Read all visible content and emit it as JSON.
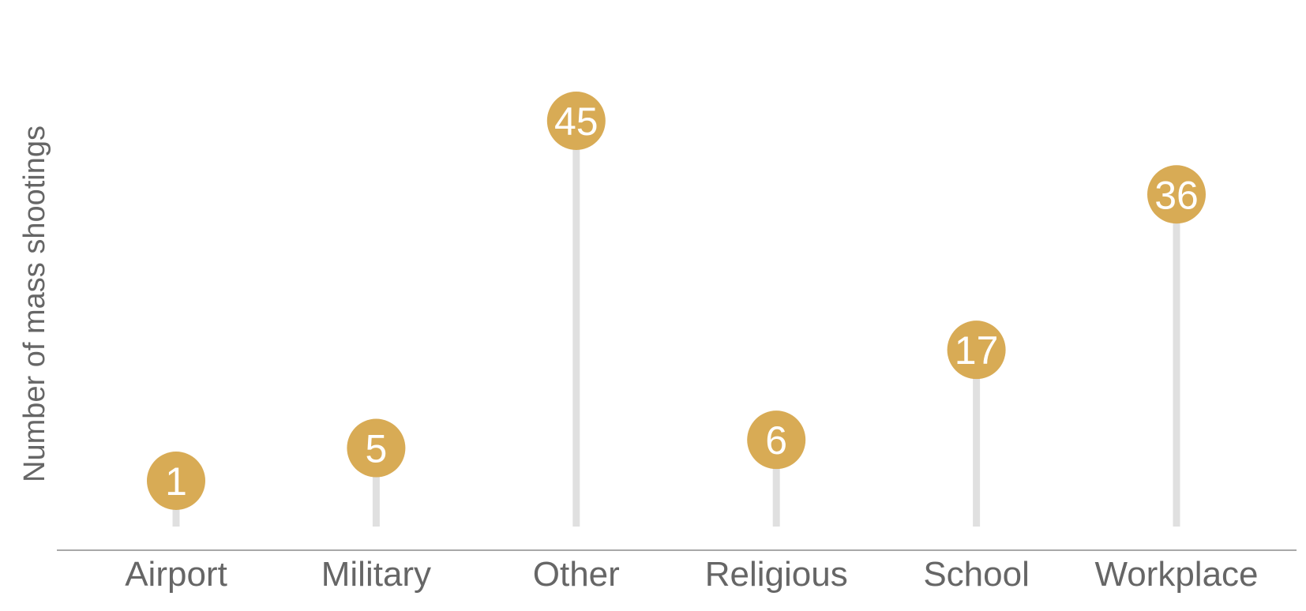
{
  "chart_data": {
    "type": "lollipop",
    "categories": [
      "Airport",
      "Military",
      "Other",
      "Religious",
      "School",
      "Workplace"
    ],
    "values": [
      1,
      5,
      45,
      6,
      17,
      36
    ],
    "value_labels": [
      "1",
      "5",
      "45",
      "6",
      "17",
      "36"
    ],
    "ylabel": "Number of mass shootings",
    "xlabel": "",
    "ylim": [
      0,
      47
    ],
    "grid": false,
    "marker_color": "#d8ab55",
    "stem_color": "#e0e0e0"
  }
}
